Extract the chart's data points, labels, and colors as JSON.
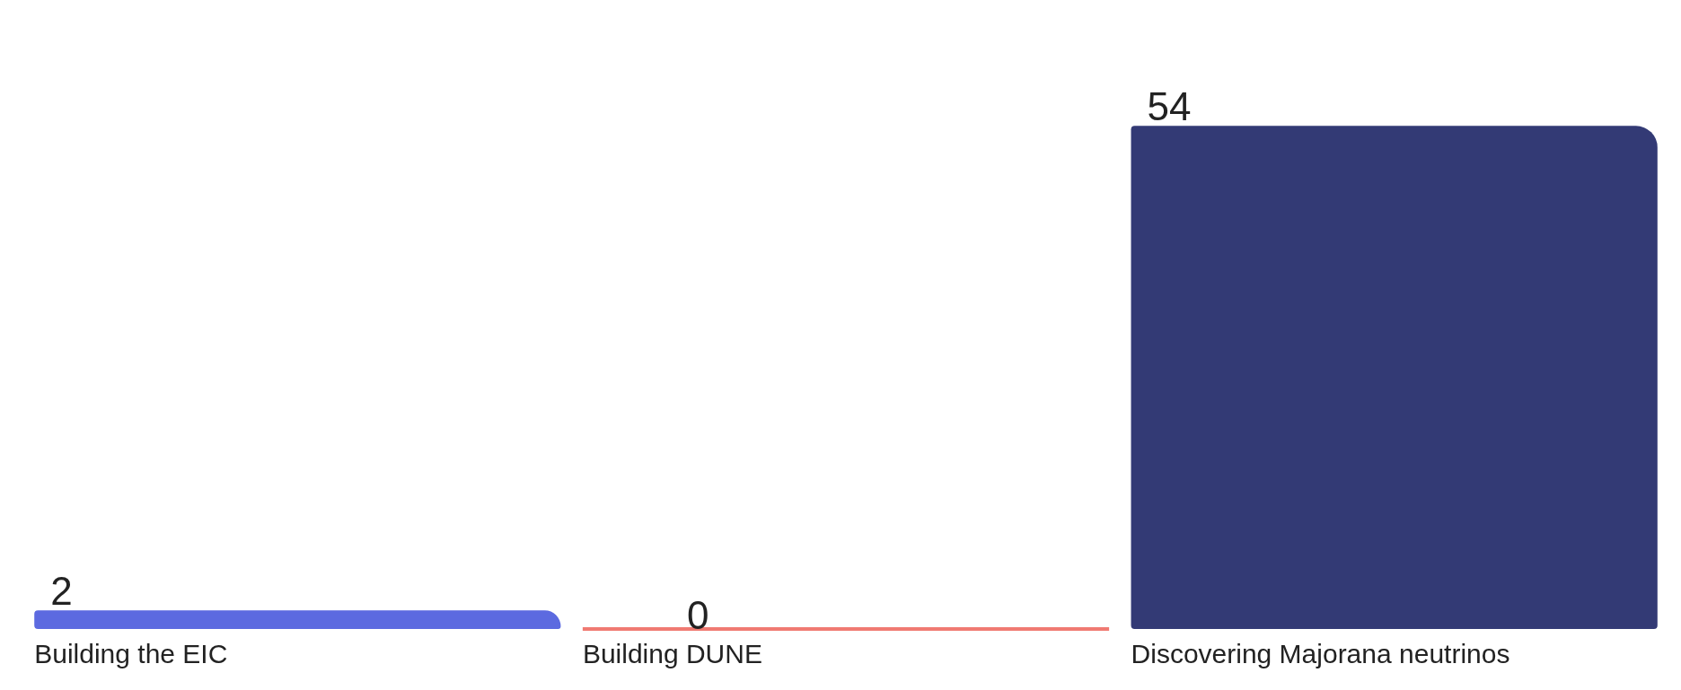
{
  "chart_data": {
    "type": "bar",
    "categories": [
      "Building the EIC",
      "Building DUNE",
      "Discovering Majorana neutrinos"
    ],
    "values": [
      2,
      0,
      54
    ],
    "colors": [
      "#5c6ae0",
      "#f07a72",
      "#333a75"
    ],
    "data_labels": true,
    "tick_labels": "x"
  }
}
